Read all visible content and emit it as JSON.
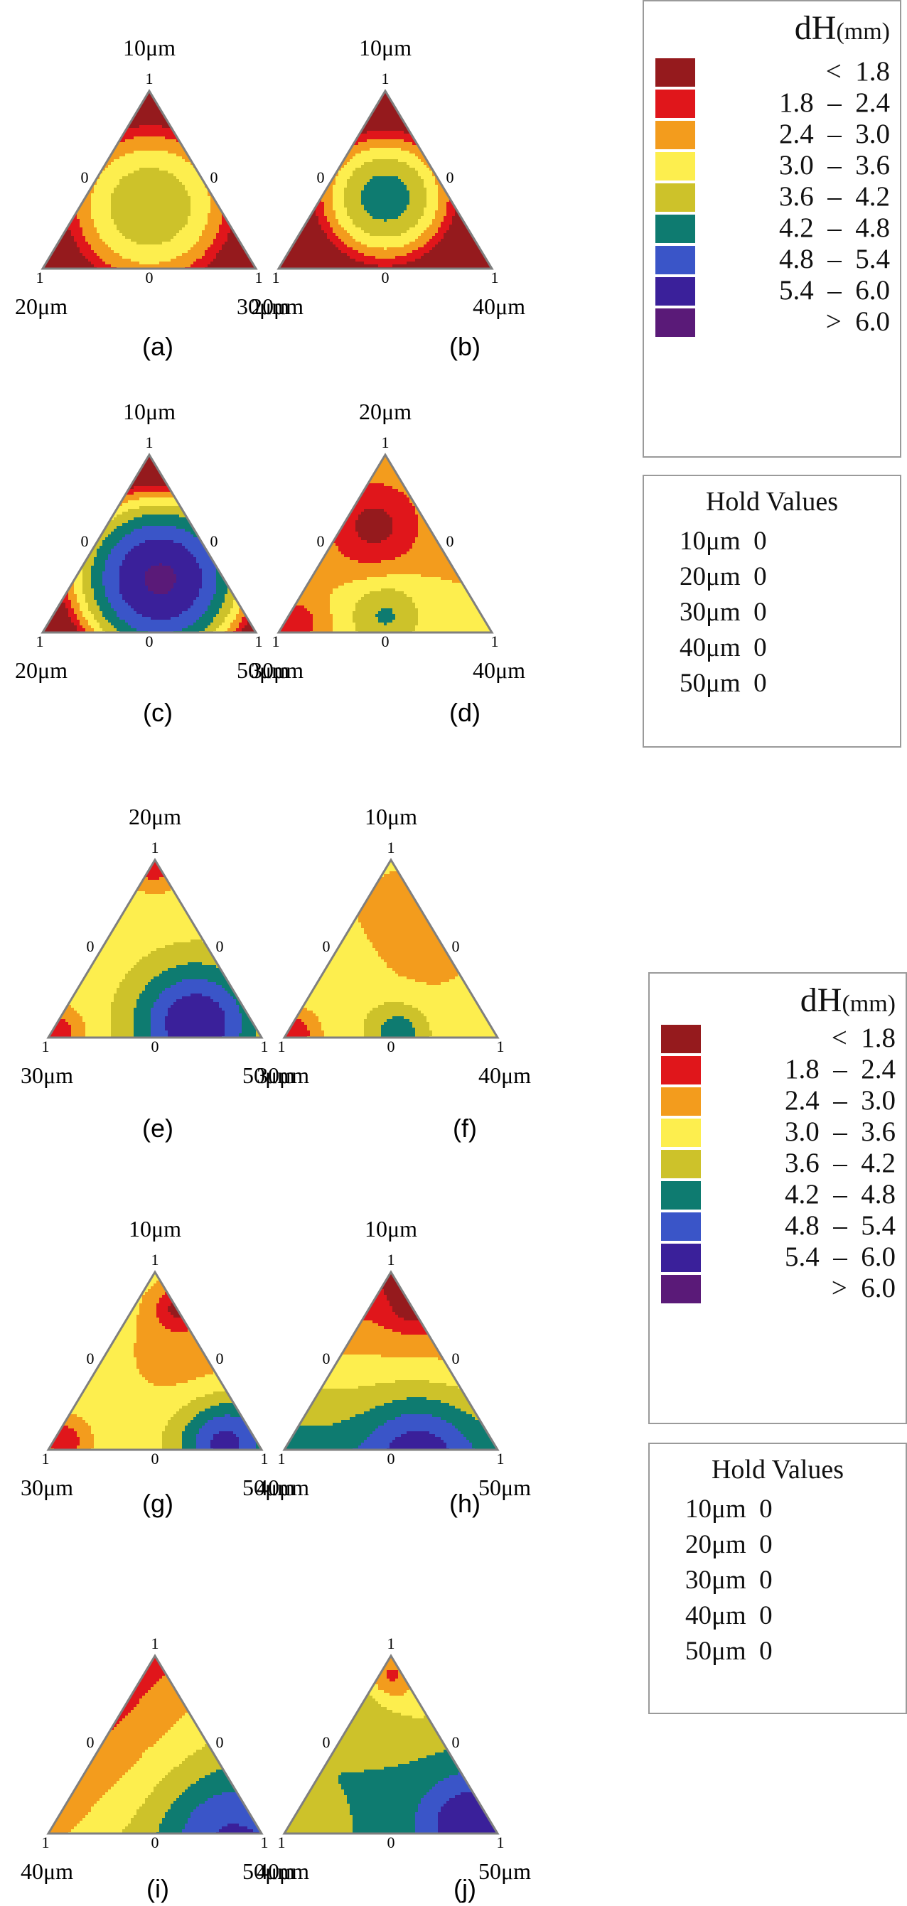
{
  "chart_data": {
    "type": "ternary-contour",
    "legend_title": "dH",
    "legend_unit": "(mm)",
    "levels": [
      {
        "label": "<  1.8",
        "color": "#951a1d"
      },
      {
        "label": "1.8  –  2.4",
        "color": "#e0161b"
      },
      {
        "label": "2.4  –  3.0",
        "color": "#f39c1d"
      },
      {
        "label": "3.0  –  3.6",
        "color": "#fdee4e"
      },
      {
        "label": "3.6  –  4.2",
        "color": "#cdc22a"
      },
      {
        "label": "4.2  –  4.8",
        "color": "#0e7b70"
      },
      {
        "label": "4.8  –  5.4",
        "color": "#3a55c8"
      },
      {
        "label": "5.4  –  6.0",
        "color": "#3a209a"
      },
      {
        "label": ">  6.0",
        "color": "#5a1a78"
      }
    ],
    "hold_title": "Hold Values",
    "hold_values": [
      {
        "name": "10μm",
        "value": "0"
      },
      {
        "name": "20μm",
        "value": "0"
      },
      {
        "name": "30μm",
        "value": "0"
      },
      {
        "name": "40μm",
        "value": "0"
      },
      {
        "name": "50μm",
        "value": "0"
      }
    ],
    "panels": [
      {
        "id": "a",
        "caption": "(a)",
        "top": "10μm",
        "left": "20μm",
        "right": "30μm",
        "field": {
          "mode": "blob",
          "c": [
            0.35,
            0.32,
            0.33
          ],
          "peak": 4.1,
          "fall": 7.0,
          "corners": [
            2.6,
            2.2,
            2.0
          ]
        }
      },
      {
        "id": "b",
        "caption": "(b)",
        "top": "10μm",
        "left": "20μm",
        "right": "40μm",
        "field": {
          "mode": "blob",
          "c": [
            0.4,
            0.3,
            0.3
          ],
          "peak": 4.5,
          "fall": 12.0,
          "corners": [
            2.8,
            2.0,
            2.0
          ]
        }
      },
      {
        "id": "c",
        "caption": "(c)",
        "top": "10μm",
        "left": "20μm",
        "right": "50μm",
        "field": {
          "mode": "blob",
          "c": [
            0.3,
            0.3,
            0.4
          ],
          "peak": 6.1,
          "fall": 9.0,
          "corners": [
            2.4,
            2.0,
            5.0
          ]
        }
      },
      {
        "id": "d",
        "caption": "(d)",
        "top": "20μm",
        "left": "30μm",
        "right": "40μm",
        "field": {
          "mode": "sum",
          "base": 3.0,
          "terms": [
            [
              0.6,
              0.25,
              0.15,
              -1.4,
              10.0
            ],
            [
              0.1,
              0.45,
              0.45,
              1.3,
              16.0
            ],
            [
              0.05,
              0.9,
              0.05,
              -1.0,
              30.0
            ]
          ]
        }
      },
      {
        "id": "e",
        "caption": "(e)",
        "top": "20μm",
        "left": "30μm",
        "right": "50μm",
        "field": {
          "mode": "sum",
          "base": 3.2,
          "terms": [
            [
              0.08,
              0.27,
              0.65,
              2.8,
              6.0
            ],
            [
              0.98,
              0.01,
              0.01,
              -1.3,
              40.0
            ],
            [
              0.03,
              0.94,
              0.03,
              -1.2,
              40.0
            ]
          ]
        }
      },
      {
        "id": "f",
        "caption": "(f)",
        "top": "10μm",
        "left": "30μm",
        "right": "40μm",
        "field": {
          "mode": "sum",
          "base": 3.2,
          "terms": [
            [
              0.6,
              0.1,
              0.3,
              -0.5,
              5.0
            ],
            [
              0.03,
              0.45,
              0.52,
              1.4,
              25.0
            ],
            [
              0.35,
              0.55,
              0.1,
              0.3,
              10.0
            ],
            [
              0.03,
              0.94,
              0.03,
              -1.3,
              45.0
            ]
          ]
        }
      },
      {
        "id": "g",
        "caption": "(g)",
        "top": "10μm",
        "left": "30μm",
        "right": "50μm",
        "field": {
          "mode": "sum",
          "base": 3.25,
          "terms": [
            [
              0.55,
              0.05,
              0.4,
              -0.6,
              6.0
            ],
            [
              0.04,
              0.15,
              0.81,
              2.4,
              10.0
            ],
            [
              0.8,
              0.0,
              0.2,
              -1.3,
              45.0
            ],
            [
              0.05,
              0.9,
              0.05,
              -1.3,
              45.0
            ]
          ]
        }
      },
      {
        "id": "h",
        "caption": "(h)",
        "top": "10μm",
        "left": "40μm",
        "right": "50μm",
        "field": {
          "mode": "linear",
          "w": [
            1.6,
            4.6,
            4.3
          ],
          "terms": [
            [
              0.03,
              0.35,
              0.62,
              1.4,
              8.0
            ],
            [
              0.8,
              0.0,
              0.2,
              -0.8,
              40.0
            ]
          ]
        }
      },
      {
        "id": "i",
        "caption": "(i)",
        "top": "",
        "left": "40μm",
        "right": "50μm",
        "field": {
          "mode": "linear",
          "w": [
            2.1,
            2.8,
            5.0
          ],
          "terms": [
            [
              0.05,
              0.2,
              0.75,
              0.9,
              8.0
            ]
          ]
        }
      },
      {
        "id": "j",
        "caption": "(j)",
        "top": "",
        "left": "40μm",
        "right": "50μm",
        "field": {
          "mode": "sum",
          "base": 4.2,
          "terms": [
            [
              0.9,
              0.05,
              0.05,
              -1.7,
              30.0
            ],
            [
              0.7,
              0.0,
              0.3,
              -0.6,
              12.0
            ],
            [
              0.05,
              0.1,
              0.85,
              1.8,
              8.0
            ],
            [
              0.05,
              0.85,
              0.1,
              -0.5,
              50.0
            ]
          ]
        }
      }
    ]
  }
}
